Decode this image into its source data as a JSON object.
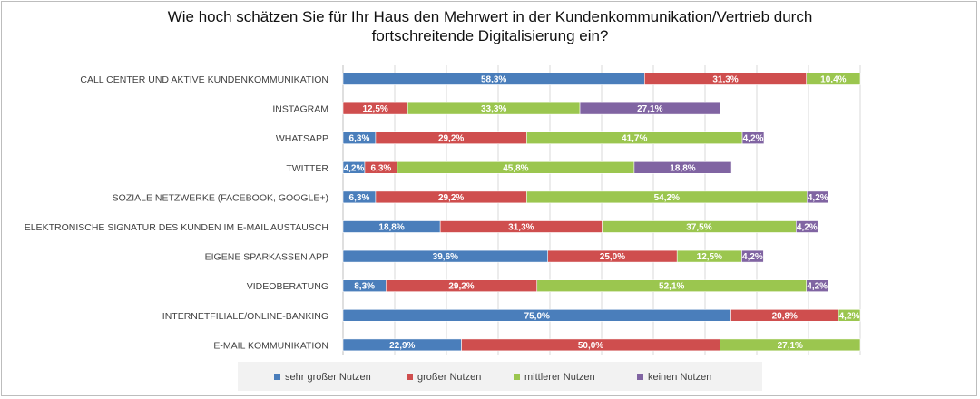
{
  "chart_data": {
    "type": "bar",
    "orientation": "horizontal",
    "stacked": true,
    "title": "Wie hoch schätzen Sie für Ihr Haus den Mehrwert in der Kundenkommunikation/Vertrieb durch fortschreitende Digitalisierung ein?",
    "title_lines": [
      "Wie hoch schätzen Sie für Ihr Haus den Mehrwert in der Kundenkommunikation/Vertrieb durch",
      "fortschreitende Digitalisierung ein?"
    ],
    "xlim": [
      0,
      100
    ],
    "grid": true,
    "legend_position": "bottom",
    "categories": [
      "CALL CENTER UND AKTIVE KUNDENKOMMUNIKATION",
      "INSTAGRAM",
      "WHATSAPP",
      "TWITTER",
      "SOZIALE NETZWERKE (FACEBOOK, GOOGLE+)",
      "ELEKTRONISCHE SIGNATUR DES KUNDEN IM E-MAIL AUSTAUSCH",
      "EIGENE SPARKASSEN APP",
      "VIDEOBERATUNG",
      "INTERNETFILIALE/ONLINE-BANKING",
      "E-MAIL KOMMUNIKATION"
    ],
    "series": [
      {
        "name": "sehr großer Nutzen",
        "color": "#4a7ebb",
        "values": [
          58.3,
          0,
          6.3,
          4.2,
          6.3,
          18.8,
          39.6,
          8.3,
          75.0,
          22.9
        ],
        "labels": [
          "58,3%",
          "",
          "6,3%",
          "4,2%",
          "6,3%",
          "18,8%",
          "39,6%",
          "8,3%",
          "75,0%",
          "22,9%"
        ]
      },
      {
        "name": "großer Nutzen",
        "color": "#cf4e4e",
        "values": [
          31.3,
          12.5,
          29.2,
          6.3,
          29.2,
          31.3,
          25.0,
          29.2,
          20.8,
          50.0
        ],
        "labels": [
          "31,3%",
          "12,5%",
          "29,2%",
          "6,3%",
          "29,2%",
          "31,3%",
          "25,0%",
          "29,2%",
          "20,8%",
          "50,0%"
        ]
      },
      {
        "name": "mittlerer Nutzen",
        "color": "#9bc64f",
        "values": [
          10.4,
          33.3,
          41.7,
          45.8,
          54.2,
          37.5,
          12.5,
          52.1,
          4.2,
          27.1
        ],
        "labels": [
          "10,4%",
          "33,3%",
          "41,7%",
          "45,8%",
          "54,2%",
          "37,5%",
          "12,5%",
          "52,1%",
          "4,2%",
          "27,1%"
        ]
      },
      {
        "name": "keinen Nutzen",
        "color": "#8064a2",
        "values": [
          0,
          27.1,
          4.2,
          18.8,
          4.2,
          4.2,
          4.2,
          4.2,
          0,
          0
        ],
        "labels": [
          "",
          "27,1%",
          "4,2%",
          "18,8%",
          "4,2%",
          "4,2%",
          "4,2%",
          "4,2%",
          "",
          ""
        ]
      }
    ]
  }
}
